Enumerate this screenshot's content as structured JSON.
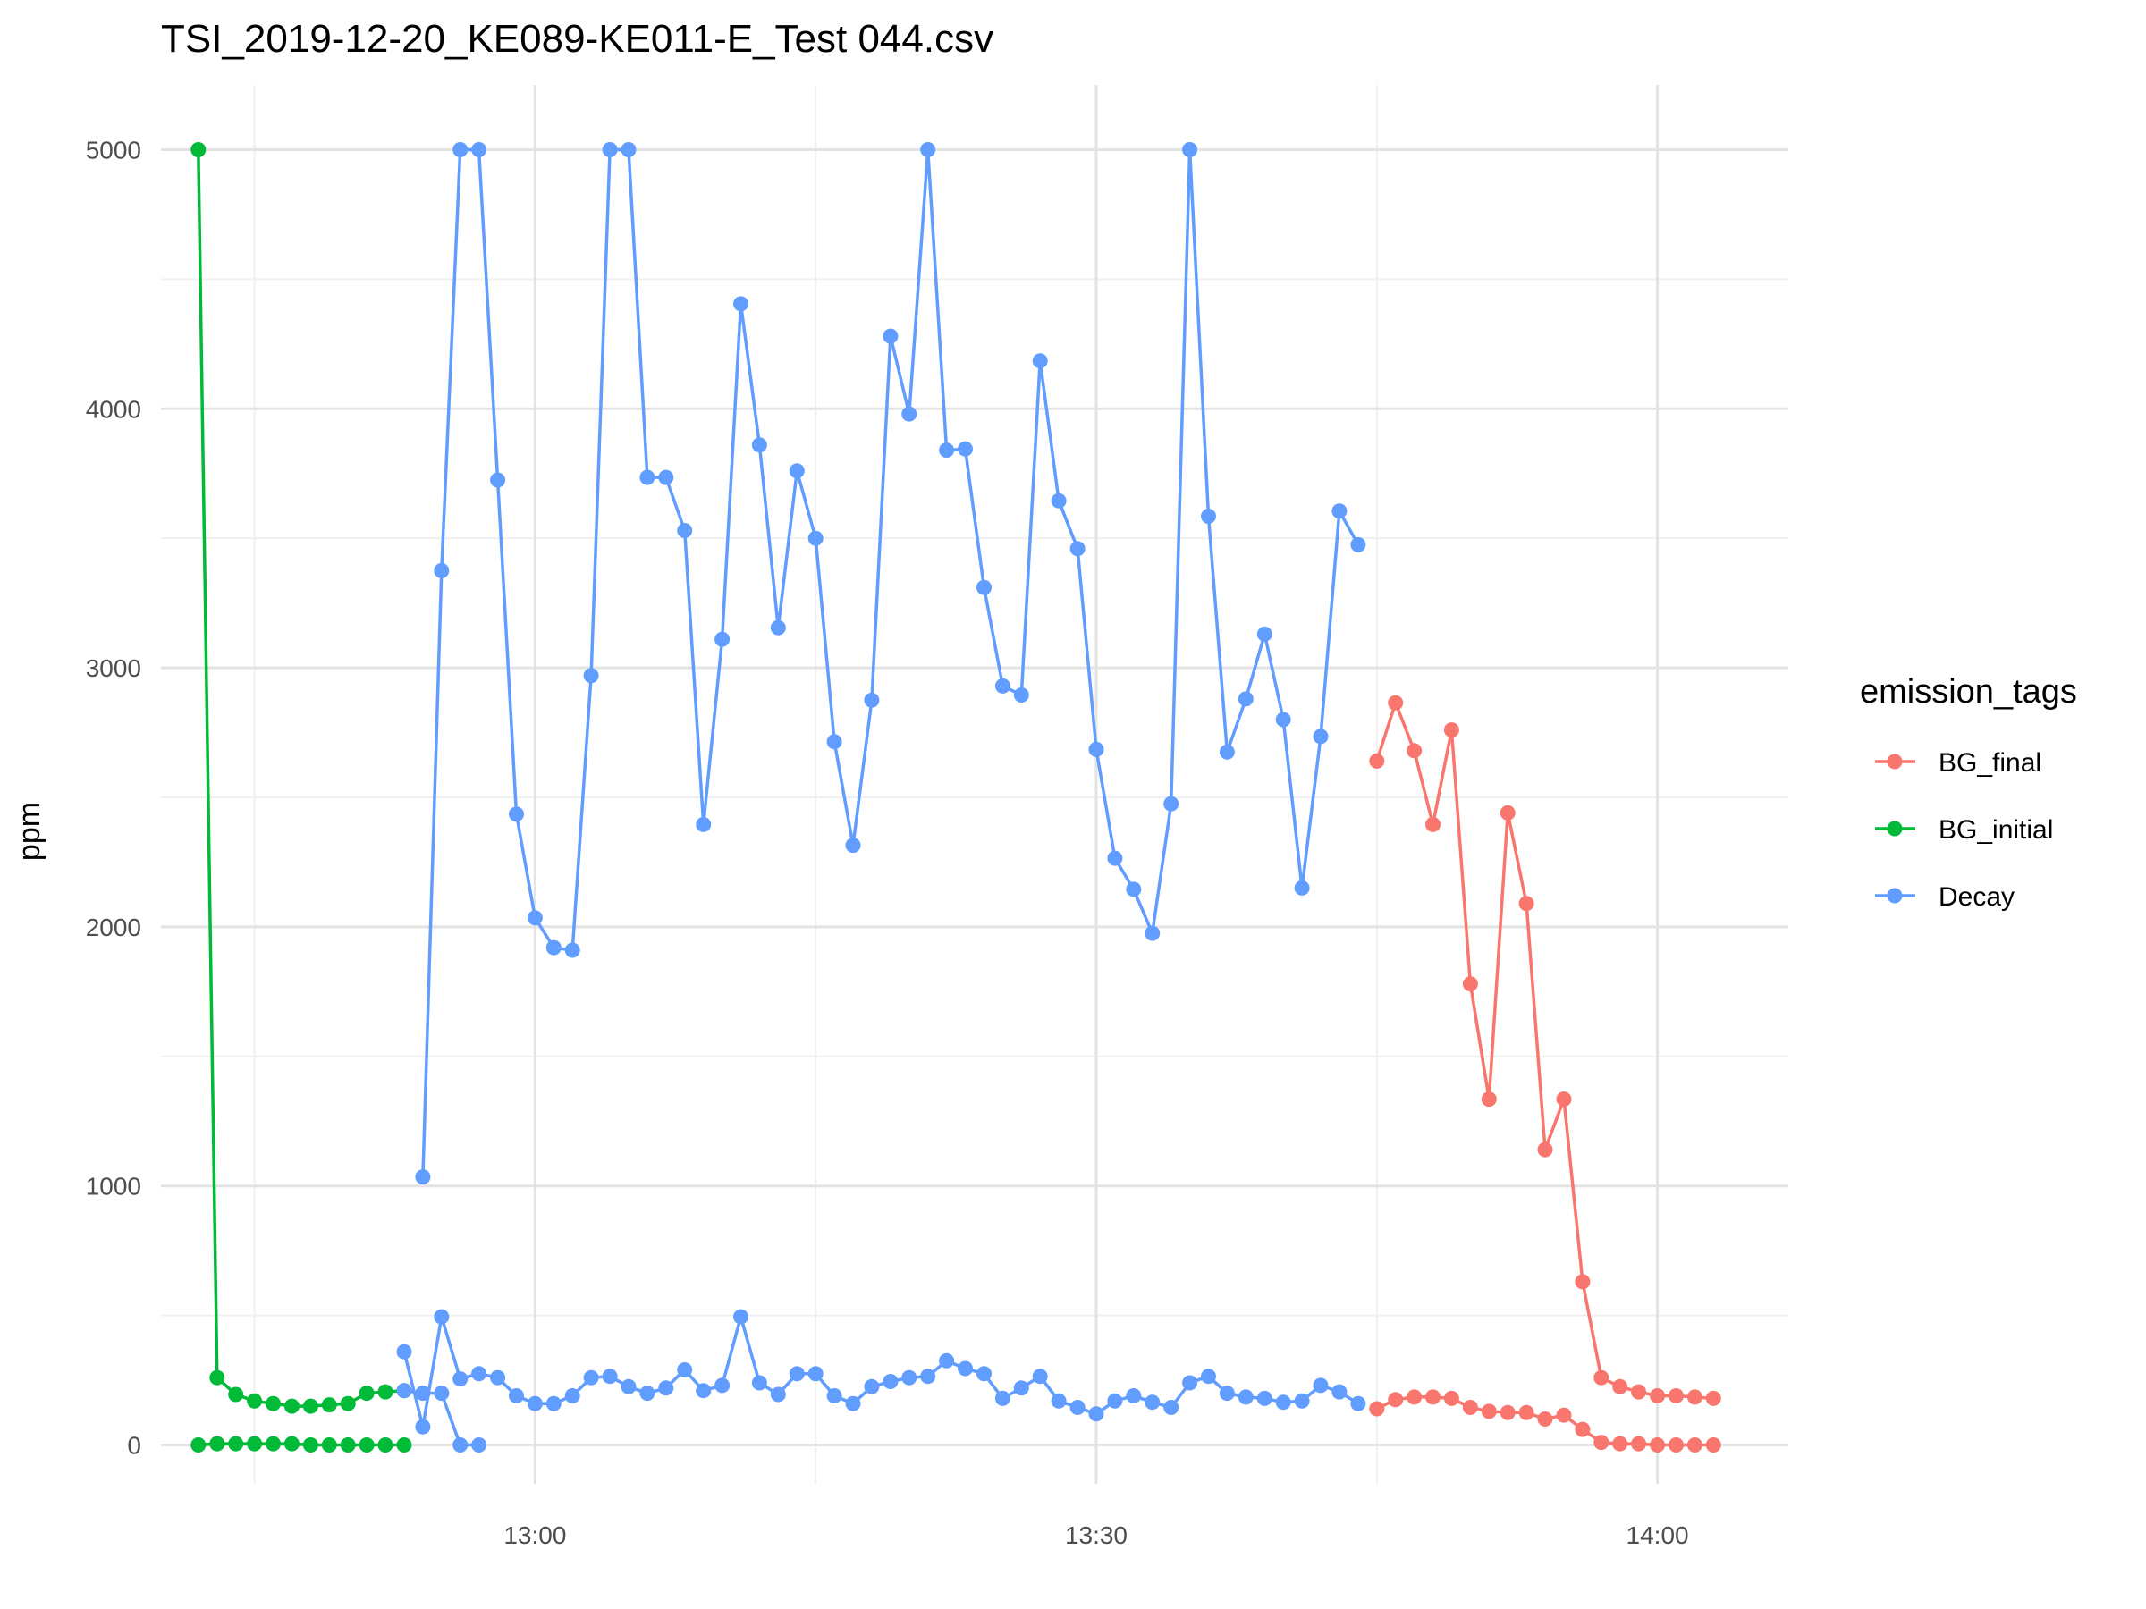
{
  "chart_data": {
    "type": "line",
    "title": "TSI_2019-12-20_KE089-KE011-E_Test 044.csv",
    "xlabel": "",
    "ylabel": "ppm",
    "x_axis": "time",
    "x_ticks": [
      "13:00",
      "13:30",
      "14:00"
    ],
    "y_ticks": [
      0,
      1000,
      2000,
      3000,
      4000,
      5000
    ],
    "xlim": [
      "12:40",
      "14:07"
    ],
    "ylim": [
      -150,
      5250
    ],
    "grid": true,
    "legend": {
      "title": "emission_tags",
      "position": "right",
      "entries": [
        "BG_final",
        "BG_initial",
        "Decay"
      ]
    },
    "series": [
      {
        "name": "BG_final",
        "color": "#F8766D",
        "lines": [
          {
            "x": [
              "13:45",
              "13:46",
              "13:47",
              "13:48",
              "13:49",
              "13:50",
              "13:51",
              "13:52",
              "13:53",
              "13:54",
              "13:55",
              "13:56",
              "13:57",
              "13:58",
              "13:59",
              "14:00",
              "14:01",
              "14:02",
              "14:03"
            ],
            "y": [
              2640,
              2865,
              2680,
              2395,
              2760,
              1780,
              1335,
              2440,
              2090,
              1140,
              1335,
              630,
              260,
              225,
              205,
              190,
              190,
              185,
              180
            ]
          },
          {
            "x": [
              "13:45",
              "13:46",
              "13:47",
              "13:48",
              "13:49",
              "13:50",
              "13:51",
              "13:52",
              "13:53",
              "13:54",
              "13:55",
              "13:56",
              "13:57",
              "13:58",
              "13:59",
              "14:00",
              "14:01",
              "14:02",
              "14:03"
            ],
            "y": [
              140,
              175,
              185,
              185,
              180,
              145,
              130,
              125,
              125,
              100,
              115,
              60,
              10,
              5,
              5,
              0,
              0,
              0,
              0
            ]
          }
        ]
      },
      {
        "name": "BG_initial",
        "color": "#00BA38",
        "lines": [
          {
            "x": [
              "12:42",
              "12:43",
              "12:44",
              "12:45",
              "12:46",
              "12:47",
              "12:48",
              "12:49",
              "12:50",
              "12:51",
              "12:52",
              "12:53"
            ],
            "y": [
              5000,
              260,
              195,
              170,
              160,
              150,
              150,
              155,
              160,
              200,
              205,
              210
            ]
          },
          {
            "x": [
              "12:42",
              "12:43",
              "12:44",
              "12:45",
              "12:46",
              "12:47",
              "12:48",
              "12:49",
              "12:50",
              "12:51",
              "12:52",
              "12:53"
            ],
            "y": [
              0,
              5,
              5,
              5,
              5,
              5,
              0,
              0,
              0,
              0,
              0,
              0
            ]
          }
        ]
      },
      {
        "name": "Decay",
        "color": "#619CFF",
        "lines": [
          {
            "x": [
              "12:54",
              "12:55",
              "12:56",
              "12:57",
              "12:58",
              "12:59",
              "13:00",
              "13:01",
              "13:02",
              "13:03",
              "13:04",
              "13:05",
              "13:06",
              "13:07",
              "13:08",
              "13:09",
              "13:10",
              "13:11",
              "13:12",
              "13:13",
              "13:14",
              "13:15",
              "13:16",
              "13:17",
              "13:18",
              "13:19",
              "13:20",
              "13:21",
              "13:22",
              "13:23",
              "13:24",
              "13:25",
              "13:26",
              "13:27",
              "13:28",
              "13:29",
              "13:30",
              "13:31",
              "13:32",
              "13:33",
              "13:34",
              "13:35",
              "13:36",
              "13:37",
              "13:38",
              "13:39",
              "13:40",
              "13:41",
              "13:42",
              "13:43",
              "13:44"
            ],
            "y": [
              1035,
              3375,
              5000,
              5000,
              3725,
              2435,
              2035,
              1920,
              1910,
              2970,
              5000,
              5000,
              3735,
              3735,
              3530,
              2395,
              3110,
              4405,
              3860,
              3155,
              3760,
              3500,
              2715,
              2315,
              2875,
              4280,
              3980,
              5000,
              3840,
              3845,
              3310,
              2930,
              2895,
              4185,
              3645,
              3460,
              2685,
              2265,
              2145,
              1975,
              2475,
              5000,
              3585,
              2675,
              2880,
              3130,
              2800,
              2150,
              2735,
              3605,
              3475
            ]
          },
          {
            "x": [
              "12:53",
              "12:54",
              "12:55",
              "12:56",
              "12:57",
              "12:58",
              "12:59",
              "13:00",
              "13:01",
              "13:02",
              "13:03",
              "13:04",
              "13:05",
              "13:06",
              "13:07",
              "13:08",
              "13:09",
              "13:10",
              "13:11",
              "13:12",
              "13:13",
              "13:14",
              "13:15",
              "13:16",
              "13:17",
              "13:18",
              "13:19",
              "13:20",
              "13:21",
              "13:22",
              "13:23",
              "13:24",
              "13:25",
              "13:26",
              "13:27",
              "13:28",
              "13:29",
              "13:30",
              "13:31",
              "13:32",
              "13:33",
              "13:34",
              "13:35",
              "13:36",
              "13:37",
              "13:38",
              "13:39",
              "13:40",
              "13:41",
              "13:42",
              "13:43",
              "13:44"
            ],
            "y": [
              360,
              70,
              495,
              255,
              275,
              260,
              190,
              160,
              160,
              190,
              260,
              265,
              225,
              200,
              220,
              290,
              210,
              230,
              495,
              240,
              195,
              275,
              275,
              190,
              160,
              225,
              245,
              260,
              265,
              325,
              295,
              275,
              180,
              220,
              265,
              170,
              145,
              120,
              170,
              190,
              165,
              145,
              240,
              265,
              200,
              185,
              180,
              165,
              170,
              230,
              205,
              160
            ]
          },
          {
            "x": [
              "12:53",
              "12:54",
              "12:55",
              "12:56",
              "12:57"
            ],
            "y": [
              210,
              200,
              200,
              0,
              0
            ]
          }
        ]
      }
    ]
  }
}
